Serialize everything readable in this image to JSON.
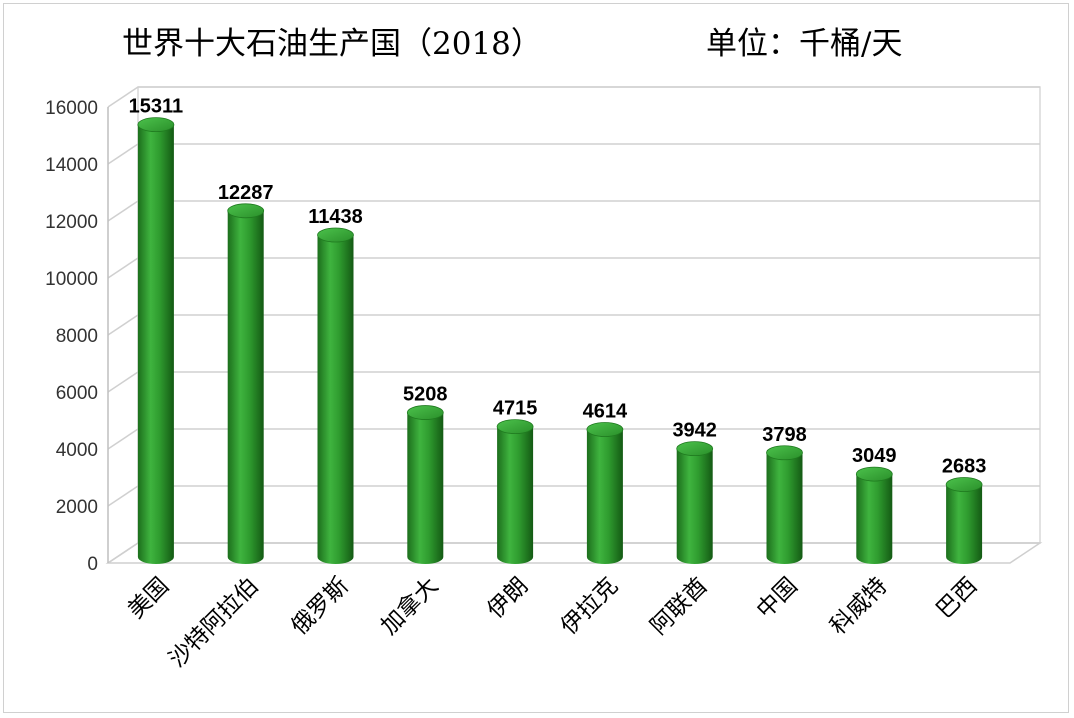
{
  "chart_data": {
    "type": "bar",
    "title": "世界十大石油生产国（2018）",
    "unit": "单位：千桶/天",
    "categories": [
      "美国",
      "沙特阿拉伯",
      "俄罗斯",
      "加拿大",
      "伊朗",
      "伊拉克",
      "阿联酋",
      "中国",
      "科威特",
      "巴西"
    ],
    "values": [
      15311,
      12287,
      11438,
      5208,
      4715,
      4614,
      3942,
      3798,
      3049,
      2683
    ],
    "ylim": [
      0,
      16000
    ],
    "yticks": [
      0,
      2000,
      4000,
      6000,
      8000,
      10000,
      12000,
      14000,
      16000
    ],
    "grid": true,
    "legend": "none",
    "bar_color": "#2e9a2e"
  }
}
